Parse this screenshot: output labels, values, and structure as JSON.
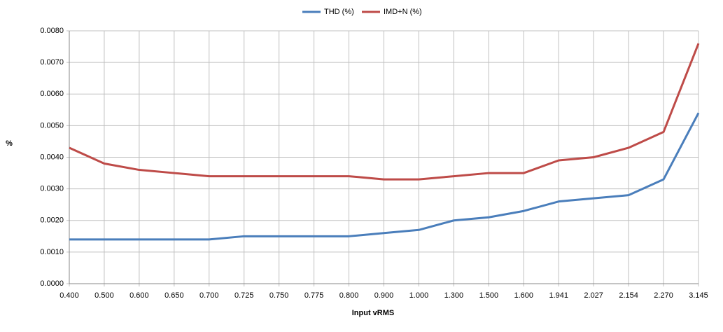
{
  "chart_data": {
    "type": "line",
    "x_label": "Input vRMS",
    "y_label": "%",
    "categories": [
      "0.400",
      "0.500",
      "0.600",
      "0.650",
      "0.700",
      "0.725",
      "0.750",
      "0.775",
      "0.800",
      "0.900",
      "1.000",
      "1.300",
      "1.500",
      "1.600",
      "1.941",
      "2.027",
      "2.154",
      "2.270",
      "3.145"
    ],
    "series": [
      {
        "name": "THD (%)",
        "color": "#4a7ebb",
        "values": [
          0.0014,
          0.0014,
          0.0014,
          0.0014,
          0.0014,
          0.0015,
          0.0015,
          0.0015,
          0.0015,
          0.0016,
          0.0017,
          0.002,
          0.0021,
          0.0023,
          0.0026,
          0.0027,
          0.0028,
          0.0033,
          0.0054
        ]
      },
      {
        "name": "IMD+N (%)",
        "color": "#be4b48",
        "values": [
          0.0043,
          0.0038,
          0.0036,
          0.0035,
          0.0034,
          0.0034,
          0.0034,
          0.0034,
          0.0034,
          0.0033,
          0.0033,
          0.0034,
          0.0035,
          0.0035,
          0.0039,
          0.004,
          0.0043,
          0.0048,
          0.0076
        ]
      }
    ],
    "ylim": [
      0,
      0.008
    ],
    "yticks": [
      {
        "value": 0,
        "label": "0.0000"
      },
      {
        "value": 0.001,
        "label": "0.0010"
      },
      {
        "value": 0.002,
        "label": "0.0020"
      },
      {
        "value": 0.003,
        "label": "0.0030"
      },
      {
        "value": 0.004,
        "label": "0.0040"
      },
      {
        "value": 0.005,
        "label": "0.0050"
      },
      {
        "value": 0.006,
        "label": "0.0060"
      },
      {
        "value": 0.007,
        "label": "0.0070"
      },
      {
        "value": 0.008,
        "label": "0.0080"
      }
    ],
    "grid": true,
    "legend": "top"
  }
}
